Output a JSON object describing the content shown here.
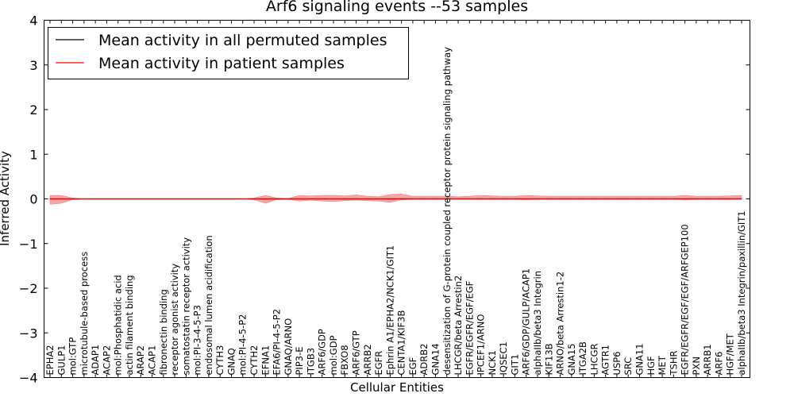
{
  "chart_data": {
    "type": "line",
    "title": "Arf6 signaling events --53 samples",
    "xlabel": "Cellular Entities",
    "ylabel": "Inferred Activity",
    "ylim": [
      -4,
      4
    ],
    "yticks": [
      -4,
      -3,
      -2,
      -1,
      0,
      1,
      2,
      3,
      4
    ],
    "legend_position": "top-left",
    "colors": {
      "permuted": "#000000",
      "patient": "#ff0000",
      "band": "#f08080"
    },
    "categories": [
      "EPHA2",
      "GULP1",
      "mol:GTP",
      "microtubule-based process",
      "ADAP1",
      "ACAP2",
      "mol:Phosphatidic acid",
      "actin filament binding",
      "ARAP2",
      "ACAP1",
      "fibronectin binding",
      "receptor agonist activity",
      "somatostatin receptor activity",
      "mol:PI-3-4-5-P3",
      "endosomal lumen acidification",
      "CYTH3",
      "GNAQ",
      "mol:PI-4-5-P2",
      "CYTH2",
      "EFNA1",
      "EFA6/PI-4-5-P2",
      "GNAQ/ARNO",
      "PIP3-E",
      "ITGB3",
      "ARF6/GDP",
      "mol:GDP",
      "FBXO8",
      "ARF6/GTP",
      "ARRB2",
      "EGFR",
      "Ephrin A1/EPHA2/NCK1/GIT1",
      "CENTA1/KIF3B",
      "EGF",
      "ADRB2",
      "GNA14",
      "desensitization of G-protein coupled receptor protein signaling pathway",
      "LHCGR/beta Arrestin2",
      "EGFR/EGFR/EGF/EGF",
      "IPCEF1/ARNO",
      "NCK1",
      "IQSEC1",
      "GIT1",
      "ARF6/GDP/GULP/ACAP1",
      "alphaIIb/beta3 Integrin",
      "KIF13B",
      "ARNO/beta Arrestin1-2",
      "GNA15",
      "ITGA2B",
      "LHCGR",
      "AGTR1",
      "USP6",
      "SRC",
      "GNA11",
      "HGF",
      "MET",
      "TSHR",
      "EGFR/EGFR/EGF/EGF/ARFGEP100",
      "PXN",
      "ARRB1",
      "ARF6",
      "HGF/MET",
      "alphaIIb/beta3 Integrin/paxillin/GIT1"
    ],
    "series": [
      {
        "name": "Mean activity in all permuted samples",
        "color": "#000000",
        "values": [
          0,
          0,
          0,
          0,
          0,
          0,
          0,
          0,
          0,
          0,
          0,
          0,
          0,
          0,
          0,
          0,
          0,
          0,
          0,
          0,
          0,
          0,
          0,
          0,
          0,
          0,
          0,
          0,
          0,
          0,
          0,
          0,
          0,
          0,
          0,
          0,
          0,
          0,
          0,
          0,
          0,
          0,
          0,
          0,
          0,
          0,
          0,
          0,
          0,
          0,
          0,
          0,
          0,
          0,
          0,
          0,
          0,
          0,
          0,
          0,
          0,
          0
        ]
      },
      {
        "name": "Mean activity in patient samples",
        "color": "#ff0000",
        "values": [
          0,
          0,
          0,
          0,
          0,
          0,
          0,
          0,
          0,
          0,
          0,
          0,
          0,
          0,
          0,
          0,
          0,
          0,
          0,
          0,
          0,
          0,
          0,
          0,
          0,
          0,
          0,
          0,
          0,
          0,
          0,
          0,
          0,
          0,
          0,
          0,
          0,
          0,
          0,
          0,
          0,
          0,
          0,
          0,
          0,
          0,
          0,
          0,
          0,
          0,
          0,
          0,
          0,
          0,
          0,
          0,
          0,
          0,
          0,
          0,
          0,
          0
        ],
        "band_upper": [
          0.08,
          0.08,
          0.02,
          0,
          0,
          0,
          0,
          0,
          0,
          0,
          0,
          0,
          0,
          0,
          0,
          0,
          0,
          0,
          0.02,
          0.08,
          0.02,
          0.01,
          0.08,
          0.07,
          0.08,
          0.08,
          0.07,
          0.09,
          0.06,
          0.05,
          0.1,
          0.11,
          0.06,
          0.06,
          0.06,
          0.06,
          0.05,
          0.06,
          0.08,
          0.07,
          0.06,
          0.06,
          0.08,
          0.07,
          0.06,
          0.06,
          0.06,
          0.06,
          0.06,
          0.06,
          0.06,
          0.06,
          0.06,
          0.06,
          0.06,
          0.06,
          0.08,
          0.06,
          0.06,
          0.06,
          0.07,
          0.08
        ],
        "band_lower": [
          -0.12,
          -0.1,
          -0.02,
          0,
          0,
          0,
          0,
          0,
          0,
          0,
          0,
          0,
          0,
          0,
          0,
          0,
          0,
          0,
          -0.02,
          -0.1,
          -0.02,
          -0.01,
          -0.05,
          -0.03,
          -0.05,
          -0.06,
          -0.04,
          -0.03,
          -0.04,
          -0.05,
          -0.08,
          -0.02,
          -0.01,
          -0.01,
          -0.01,
          -0.01,
          -0.01,
          -0.01,
          -0.01,
          -0.01,
          -0.01,
          -0.01,
          -0.02,
          -0.01,
          -0.01,
          -0.01,
          -0.01,
          -0.01,
          -0.01,
          -0.01,
          -0.01,
          -0.01,
          -0.01,
          -0.01,
          -0.01,
          -0.01,
          -0.02,
          -0.01,
          -0.01,
          -0.01,
          -0.01,
          -0.01
        ]
      }
    ]
  }
}
